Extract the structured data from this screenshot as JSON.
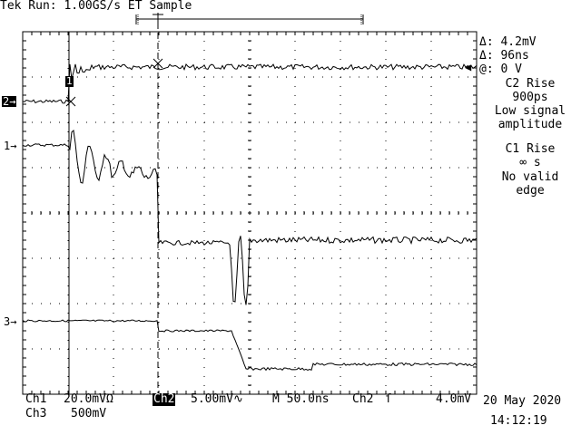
{
  "header": {
    "status": "Tek Run: 1.00GS/s ET Sample"
  },
  "markers": {
    "ch1": "1→",
    "ch2": "2→",
    "ch3": "3→",
    "trigger_flag": "T",
    "ch1_flag": "1"
  },
  "cursor_readout": {
    "delta_v": "Δ: 4.2mV",
    "delta_t": "Δ: 96ns",
    "at": "@: 0 V"
  },
  "measurements": [
    {
      "title": "C2 Rise",
      "line1": "900ps",
      "line2": "Low signal",
      "line3": "amplitude"
    },
    {
      "title": "C1 Rise",
      "line1": "∞ s",
      "line2": "No valid",
      "line3": "edge"
    }
  ],
  "footer": {
    "ch1_label": "Ch1",
    "ch1_scale": "20.0mVΩ",
    "ch2_label": "Ch2",
    "ch2_scale": "5.00mV∿",
    "timebase": "M 50.0ns",
    "trigger_src": "Ch2",
    "trigger_slope": "ſ",
    "trigger_level": "4.0mV",
    "ch3_label": "Ch3",
    "ch3_scale": "500mV",
    "date": "20 May 2020",
    "time": "14:12:19"
  },
  "colors": {
    "background": "#ffffff",
    "trace": "#000000",
    "graticule": "#000000"
  }
}
